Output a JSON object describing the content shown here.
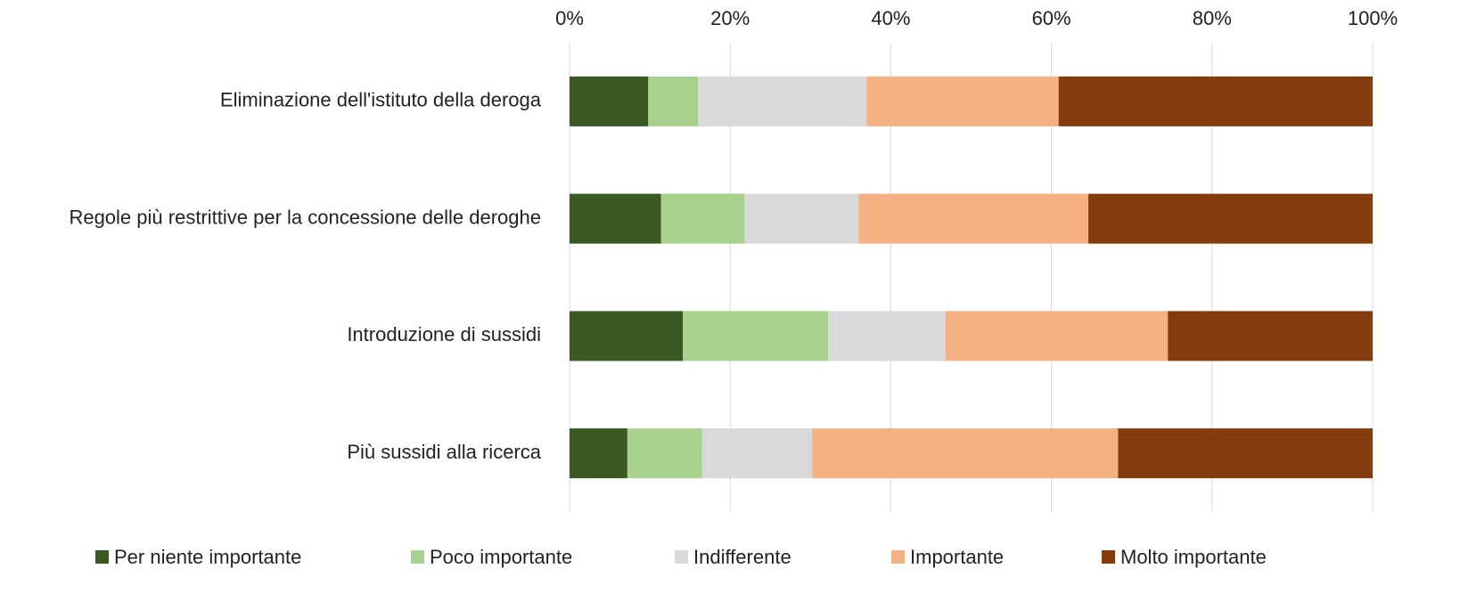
{
  "chart_data": {
    "type": "stacked_bar_horizontal",
    "categories": [
      "Eliminazione dell'istituto della deroga",
      "Regole più restrittive per la concessione delle deroghe",
      "Introduzione di sussidi",
      "Più sussidi alla ricerca"
    ],
    "series": [
      {
        "name": "Per niente importante",
        "color": "#3b5a23",
        "values": [
          9.8,
          11.4,
          14.1,
          7.2
        ]
      },
      {
        "name": "Poco importante",
        "color": "#a8d18e",
        "values": [
          6.2,
          10.4,
          18.1,
          9.3
        ]
      },
      {
        "name": "Indifferente",
        "color": "#d9d9d9",
        "values": [
          21.0,
          14.2,
          14.6,
          13.7
        ]
      },
      {
        "name": "Importante",
        "color": "#f4b183",
        "values": [
          23.9,
          28.6,
          27.7,
          38.1
        ]
      },
      {
        "name": "Molto importante",
        "color": "#843c0c",
        "values": [
          39.1,
          35.4,
          25.5,
          31.7
        ]
      }
    ],
    "xlim": [
      0,
      100
    ],
    "xticks": [
      {
        "value": 0,
        "label": "0%"
      },
      {
        "value": 20,
        "label": "20%"
      },
      {
        "value": 40,
        "label": "40%"
      },
      {
        "value": 60,
        "label": "60%"
      },
      {
        "value": 80,
        "label": "80%"
      },
      {
        "value": 100,
        "label": "100%"
      }
    ],
    "grid": true,
    "legend": "bottom"
  }
}
